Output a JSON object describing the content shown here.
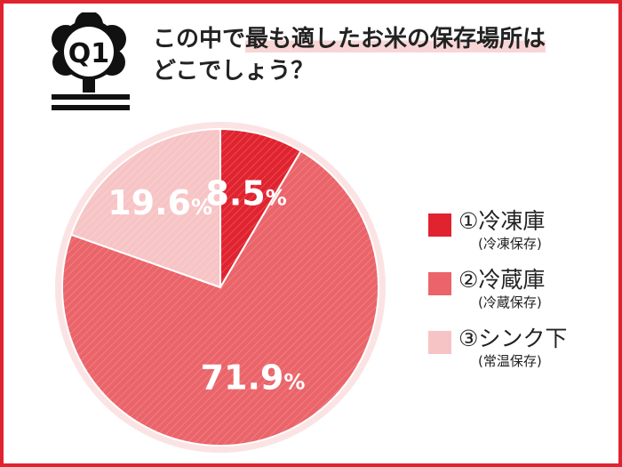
{
  "badge": {
    "label": "Q1"
  },
  "title": {
    "line1_pre": "この中で",
    "line1_highlight": "最も適したお米の保存場所は",
    "line2": "どこでしょう？"
  },
  "colors": {
    "frame": "#e0232f",
    "highlight": "#f9d6d6"
  },
  "chart_data": {
    "type": "pie",
    "title": "この中で最も適したお米の保存場所はどこでしょう？",
    "start_angle_deg": 0,
    "direction": "clockwise",
    "slices": [
      {
        "label": "①冷凍庫",
        "sublabel": "(冷凍保存)",
        "value": 8.5,
        "value_text": "8.5",
        "unit": "%",
        "color": "#e0232f"
      },
      {
        "label": "②冷蔵庫",
        "sublabel": "(冷蔵保存)",
        "value": 71.9,
        "value_text": "71.9",
        "unit": "%",
        "color": "#ea6469"
      },
      {
        "label": "③シンク下",
        "sublabel": "(常温保存)",
        "value": 19.6,
        "value_text": "19.6",
        "unit": "%",
        "color": "#f7c4c6"
      }
    ]
  }
}
